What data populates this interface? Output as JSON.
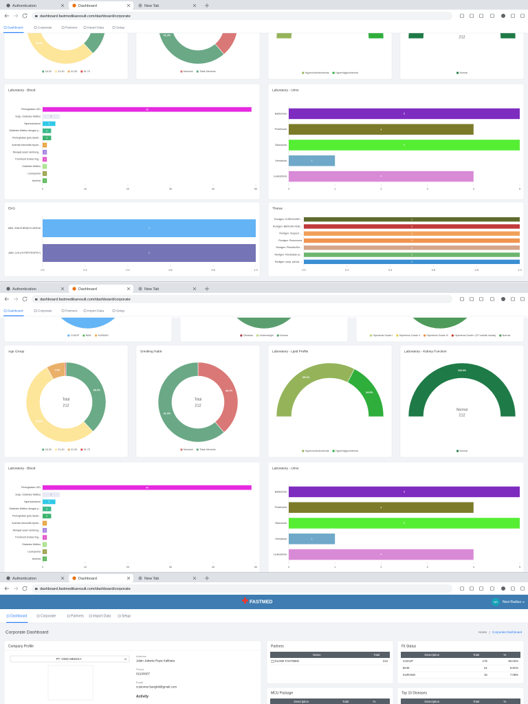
{
  "screens": [
    {
      "browser": {
        "tabs": [
          "Authentication",
          "Dashboard",
          "New Tab"
        ],
        "active_tab": 1,
        "url": "dashboard.fastmedikaresult.com/dashboard/corporate"
      },
      "nav": {
        "items": [
          "Dashboard",
          "Corporate",
          "Partners",
          "Import Data",
          "Setup"
        ],
        "active": 0
      },
      "cards": [
        {
          "type": "donut",
          "categories": [
            "18-30",
            "31-40",
            "41-50",
            "51-70"
          ],
          "values": [
            38.2,
            53.8,
            7.5,
            0.5
          ],
          "value_labels": [
            null,
            "53.8%",
            null,
            null
          ],
          "colors": [
            "#6aaa86",
            "#fde59a",
            "#eab06a",
            "#d9534f"
          ]
        },
        {
          "type": "donut",
          "categories": [
            "Merokok",
            "Tidak Merokok"
          ],
          "values": [
            38.7,
            61.3
          ],
          "value_labels": [
            null,
            "61.3%"
          ],
          "colors": [
            "#d97876",
            "#6aa886"
          ]
        },
        {
          "type": "gauge",
          "categories": [
            "Hypercholesterolemia",
            "Hypertriglyceridemia"
          ],
          "values": [
            65.1,
            34.9
          ],
          "colors": [
            "#95b45a",
            "#2fae3b"
          ]
        },
        {
          "type": "gauge",
          "categories": [
            "Normal"
          ],
          "values": [
            100
          ],
          "colors": [
            "#1e7a46"
          ],
          "center_value": 212
        },
        {
          "type": "hbar",
          "title": "Laboratory - Blood",
          "categories": [
            "Peningkatan LED",
            "Susp. Diabetes Melitus",
            "Hiperkolesterol",
            "Diabetes Melitus dengan p...",
            "Peningkatan gula darah...",
            "Anemia mikrositik hipokr...",
            "Riwayat asam lambung...",
            "Trombosit di atas ting...",
            "Diabetes Melitus",
            "Leukopenia",
            "Anemia"
          ],
          "values": [
            49,
            4,
            3,
            2,
            2,
            1,
            1,
            1,
            1,
            1,
            1
          ],
          "colors": [
            "#e62ae0",
            "#e8eaf6",
            "#32c8e8",
            "#3ab98a",
            "#3cb371",
            "#e8a33c",
            "#a884e0",
            "#e356c9",
            "#a7e38a",
            "#9aa04a",
            "#5cb85c"
          ],
          "xlim": [
            0,
            50
          ],
          "xticks": [
            0,
            10,
            20,
            30,
            40,
            50
          ]
        },
        {
          "type": "hbar",
          "title": "Laboratory - Urine",
          "categories": [
            "Bakteriuria",
            "Proteinuria",
            "Glukosuria",
            "Hematuria",
            "Leukosituria"
          ],
          "values": [
            5,
            4,
            5,
            1,
            4
          ],
          "colors": [
            "#7e2bc0",
            "#7b7b2a",
            "#55ee33",
            "#6fa8c8",
            "#d98ad6"
          ],
          "xlim": [
            0,
            5
          ],
          "xticks": [
            0,
            1,
            2,
            3,
            4,
            5
          ]
        },
        {
          "type": "hbar",
          "title": "EKG",
          "categories": [
            "ABN. SINUS BRADYCARDIA",
            "ABN. LVH (HYPERTROPHY)"
          ],
          "values": [
            1,
            1
          ],
          "colors": [
            "#63b3f5",
            "#7474b6"
          ],
          "xlim": [
            0,
            1
          ],
          "xticks": [
            {
              "value": 0,
              "label": "0.0"
            },
            0.2,
            0.4,
            0.6,
            0.8,
            {
              "value": 1,
              "label": "1.0"
            }
          ]
        },
        {
          "type": "hbar",
          "title": "Thorax",
          "categories": [
            "Rontgen: CURIGA BEF...",
            "Rontgen: BERCAK RDB...",
            "Rontgen: Suspect ...",
            "Rontgen: Pneumonia",
            "Rontgen: Pleuritis/Sin...",
            "Rontgen: Penebalan pl...",
            "Rontgen: susp. pleura ..."
          ],
          "values": [
            1,
            1,
            1,
            1,
            1,
            1,
            1
          ],
          "colors": [
            "#5f6b2c",
            "#c0393b",
            "#f0a05a",
            "#f09450",
            "#d4a58a",
            "#6db56d",
            "#3a8fd1"
          ],
          "xlim": [
            0,
            1
          ],
          "xticks": [
            {
              "value": 0,
              "label": "0.0"
            },
            0.2,
            0.4,
            0.6,
            0.8,
            {
              "value": 1,
              "label": "1.0"
            }
          ]
        }
      ]
    },
    {
      "browser": {
        "tabs": [
          "Authentication",
          "Dashboard",
          "New Tab"
        ],
        "active_tab": 1,
        "url": "dashboard.fastmedikaresult.com/dashboard/corporate"
      },
      "nav": {
        "items": [
          "Dashboard",
          "Corporate",
          "Partners",
          "Import Data",
          "Setup"
        ],
        "active": 0
      },
      "cards": [
        {
          "type": "donut",
          "categories": [
            "CUKUP",
            "BAIK",
            "KURANG"
          ],
          "values": [
            83.02,
            9.91,
            7.08
          ],
          "colors": [
            "#64b5f6",
            "#5cb85c",
            "#f0ad4e"
          ]
        },
        {
          "type": "donut",
          "categories": [
            "Obesitas",
            "Underweight",
            "Normal"
          ],
          "values": [
            30,
            5,
            65
          ],
          "colors": [
            "#a93848",
            "#b9d27a",
            "#5a9e6f"
          ]
        },
        {
          "type": "donut",
          "categories": [
            "Hipertensi Grade I",
            "Hipertensi Grade II",
            "Hipertensi Grade III",
            "Hipertensi Grade I (HT sistolik isolasi)",
            "Normal"
          ],
          "values": [
            10,
            4,
            2,
            2,
            82
          ],
          "colors": [
            "#b4cf72",
            "#e6c94a",
            "#f08c3a",
            "#c0392b",
            "#4e9a5a"
          ]
        },
        {
          "type": "donut",
          "title": "Age Group",
          "categories": [
            "18-30",
            "31-40",
            "41-50",
            "51-70"
          ],
          "values": [
            38.2,
            53.8,
            7.5,
            0.5
          ],
          "value_labels": [
            "38.2%",
            "53.8%",
            "7.5%",
            null
          ],
          "colors": [
            "#6aaa86",
            "#fde59a",
            "#eab06a",
            "#d9534f"
          ],
          "center_label": "Total",
          "center_value": 212
        },
        {
          "type": "donut",
          "title": "Smoking Habit",
          "categories": [
            "Merokok",
            "Tidak Merokok"
          ],
          "values": [
            38.7,
            61.3
          ],
          "value_labels": [
            "38.7%",
            "61.3%"
          ],
          "colors": [
            "#d97876",
            "#6aa886"
          ],
          "center_label": "Total",
          "center_value": 212
        },
        {
          "type": "gauge",
          "title": "Laboratory - Lipid Profile",
          "categories": [
            "Hypercholesterolemia",
            "Hypertriglyceridemia"
          ],
          "values": [
            65.1,
            34.9
          ],
          "value_labels": [
            "65.1%",
            "34.9%"
          ],
          "colors": [
            "#95b45a",
            "#2fae3b"
          ]
        },
        {
          "type": "gauge",
          "title": "Laboratory - Kidney Function",
          "categories": [
            "Normal"
          ],
          "values": [
            100
          ],
          "value_labels": [
            "100.0%"
          ],
          "colors": [
            "#1e7a46"
          ],
          "center_label": "Normal",
          "center_value": 212
        },
        {
          "type": "hbar",
          "title": "Laboratory - Blood",
          "categories": [
            "Peningkatan LED",
            "Susp. Diabetes Melitus",
            "Hiperkolesterol",
            "Diabetes Melitus dengan p...",
            "Peningkatan gula darah...",
            "Anemia mikrositik hipokr...",
            "Riwayat asam lambung...",
            "Trombosit di atas ting...",
            "Diabetes Melitus",
            "Leukopenia",
            "Anemia"
          ],
          "values": [
            49,
            4,
            3,
            2,
            2,
            1,
            1,
            1,
            1,
            1,
            1
          ],
          "colors": [
            "#e62ae0",
            "#e8eaf6",
            "#32c8e8",
            "#3ab98a",
            "#3cb371",
            "#e8a33c",
            "#a884e0",
            "#e356c9",
            "#a7e38a",
            "#9aa04a",
            "#5cb85c"
          ],
          "xlim": [
            0,
            50
          ],
          "xticks": [
            0,
            10,
            20,
            30,
            40,
            50
          ]
        },
        {
          "type": "hbar",
          "title": "Laboratory - Urine",
          "categories": [
            "Bakteriuria",
            "Proteinuria",
            "Glukosuria",
            "Hematuria",
            "Leukosituria"
          ],
          "values": [
            5,
            4,
            5,
            1,
            4
          ],
          "colors": [
            "#7e2bc0",
            "#7b7b2a",
            "#55ee33",
            "#6fa8c8",
            "#d98ad6"
          ],
          "xlim": [
            0,
            5
          ],
          "xticks": [
            0,
            1,
            2,
            3,
            4,
            5
          ]
        }
      ]
    },
    {
      "browser": {
        "tabs": [
          "Authentication",
          "Dashboard",
          "New Tab"
        ],
        "active_tab": 1,
        "url": "dashboard.fastmedikaresult.com/dashboard/corporate"
      },
      "header": {
        "brand": "FASTMED",
        "user_initials": "NR",
        "user": "Novi Radius"
      },
      "nav": {
        "items": [
          "Dashboard",
          "Corporate",
          "Partners",
          "Import Data",
          "Setup"
        ],
        "active": 0
      },
      "page_title": "Corporate Dashboard",
      "breadcrumb": [
        "Home",
        "Corporate Dashboard"
      ],
      "company_profile": {
        "title": "Company Profile",
        "company": "PT. OWS MEDIKA",
        "fields": [
          {
            "label": "Address",
            "value": "Jalan Jakarta Raya Kalibata"
          },
          {
            "label": "Phone",
            "value": "02100007"
          },
          {
            "label": "Email",
            "value": "customer.bangkit@gmail.com"
          }
        ],
        "activity": "Activity"
      },
      "tables": [
        {
          "title": "Partners",
          "columns": [
            "Name",
            "Total"
          ],
          "rows": [
            [
              "KLINIK FASTMED",
              212
            ]
          ]
        },
        {
          "title": "Fit Status",
          "columns": [
            "Description",
            "Total",
            "%"
          ],
          "rows": [
            [
              "CUKUP",
              176,
              "83.02%"
            ],
            [
              "BAIK",
              21,
              "9.91%"
            ],
            [
              "KURANG",
              15,
              "7.08%"
            ]
          ]
        },
        {
          "title": "MCU Package",
          "columns": [
            "Description",
            "Total",
            "%"
          ],
          "rows": []
        },
        {
          "title": "Top 10 Diseases",
          "columns": [
            "Description",
            "Total",
            "%"
          ],
          "rows": []
        }
      ]
    }
  ]
}
